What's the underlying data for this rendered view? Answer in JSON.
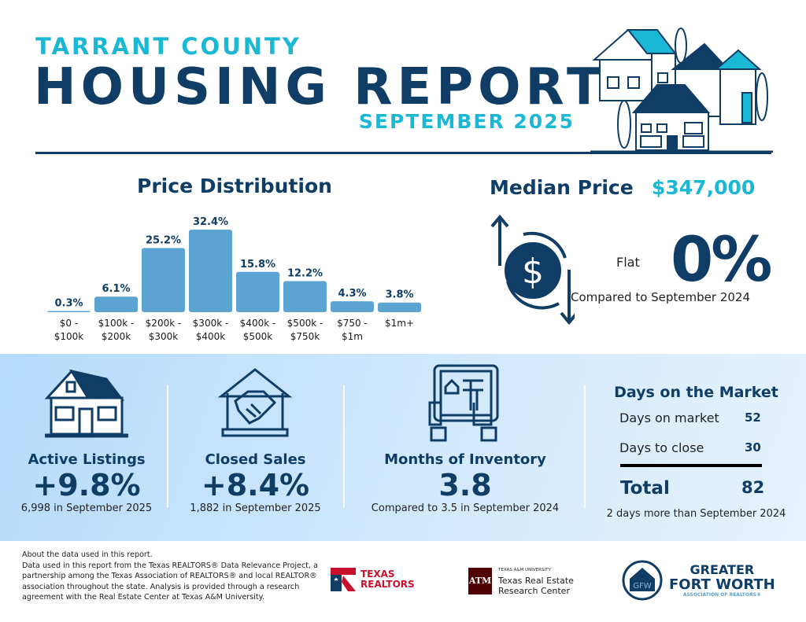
{
  "header": {
    "county": "TARRANT COUNTY",
    "title": "HOUSING REPORT",
    "period": "SEPTEMBER 2025"
  },
  "colors": {
    "navy": "#0f3d66",
    "teal": "#1bb8d6",
    "bar": "#5ba3d0",
    "band": "#c6e3fb"
  },
  "chart_data": {
    "type": "bar",
    "title": "Price Distribution",
    "categories": [
      "$0 - $100k",
      "$100k - $200k",
      "$200k - $300k",
      "$300k - $400k",
      "$400k - $500k",
      "$500k - $750k",
      "$750 - $1m",
      "$1m+"
    ],
    "category_lines": [
      [
        "$0 -",
        "$100k"
      ],
      [
        "$100k -",
        "$200k"
      ],
      [
        "$200k -",
        "$300k"
      ],
      [
        "$300k -",
        "$400k"
      ],
      [
        "$400k -",
        "$500k"
      ],
      [
        "$500k -",
        "$750k"
      ],
      [
        "$750 -",
        "$1m"
      ],
      [
        "$1m+"
      ]
    ],
    "values": [
      0.3,
      6.1,
      25.2,
      32.4,
      15.8,
      12.2,
      4.3,
      3.8
    ],
    "labels": [
      "0.3%",
      "6.1%",
      "25.2%",
      "32.4%",
      "15.8%",
      "12.2%",
      "4.3%",
      "3.8%"
    ],
    "unit": "%",
    "grid": false
  },
  "median": {
    "label": "Median Price",
    "value": "$347,000",
    "trend": "Flat",
    "change": "0%",
    "compare": "Compared to September 2024",
    "icon": "dollar-cycle-icon"
  },
  "stats": [
    {
      "title": "Active Listings",
      "value": "+9.8%",
      "sub": "6,998 in September 2025",
      "icon": "house-icon"
    },
    {
      "title": "Closed Sales",
      "value": "+8.4%",
      "sub": "1,882 in September 2025",
      "icon": "handshake-house-icon"
    },
    {
      "title": "Months of Inventory",
      "value": "3.8",
      "sub": "Compared to 3.5 in September 2024",
      "icon": "tablet-hands-icon"
    }
  ],
  "dom": {
    "title": "Days on the Market",
    "rows": [
      {
        "label": "Days on market",
        "value": "52"
      },
      {
        "label": "Days to close",
        "value": "30"
      }
    ],
    "total_label": "Total",
    "total_value": "82",
    "sub": "2 days more than September 2024"
  },
  "footer": {
    "line1": "About the data used in this report.",
    "body": "Data used in this report from the Texas REALTORS® Data Relevance Project, a partnership among the Texas Association of REALTORS® and local REALTOR® association throughout the state. Analysis is provided through a research agreement with the Real Estate Center at Texas A&M University."
  },
  "logos": {
    "texas_realtors": [
      "TEXAS",
      "REALTORS"
    ],
    "tamu": {
      "small": "TEXAS A&M UNIVERSITY",
      "line1": "Texas Real Estate",
      "line2": "Research Center"
    },
    "gfw": {
      "line1": "GREATER",
      "line2": "FORT WORTH",
      "line3": "ASSOCIATION OF REALTORS®"
    }
  }
}
